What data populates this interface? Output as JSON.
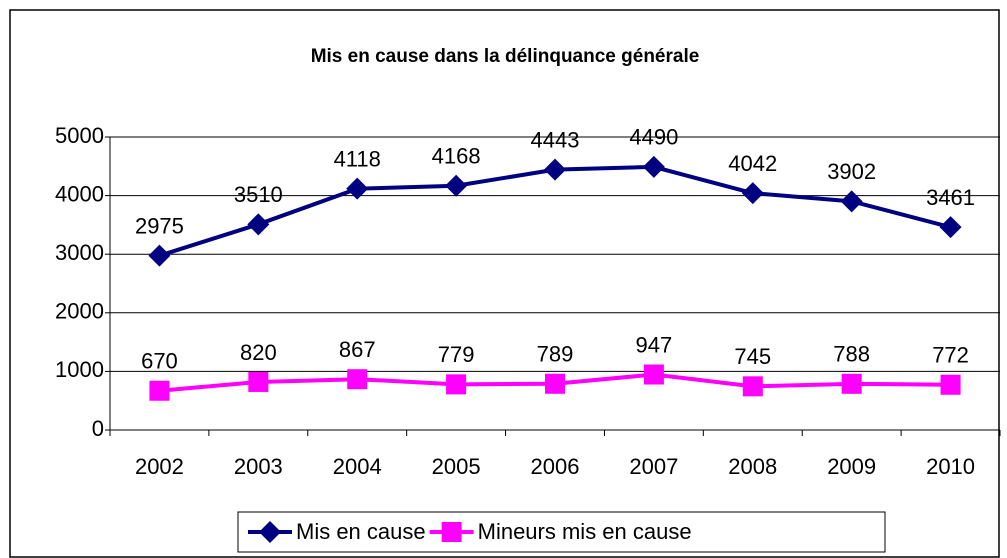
{
  "chart_data": {
    "type": "line",
    "title": "Mis en cause dans la délinquance générale",
    "categories": [
      "2002",
      "2003",
      "2004",
      "2005",
      "2006",
      "2007",
      "2008",
      "2009",
      "2010"
    ],
    "series": [
      {
        "name": "Mis en cause",
        "color": "#000080",
        "marker": "diamond",
        "values": [
          2975,
          3510,
          4118,
          4168,
          4443,
          4490,
          4042,
          3902,
          3461
        ]
      },
      {
        "name": "Mineurs mis en cause",
        "color": "#ff00ff",
        "marker": "square",
        "values": [
          670,
          820,
          867,
          779,
          789,
          947,
          745,
          788,
          772
        ]
      }
    ],
    "ylim": [
      0,
      5000
    ],
    "yticks": [
      0,
      1000,
      2000,
      3000,
      4000,
      5000
    ],
    "grid": true,
    "legend": "bottom"
  }
}
